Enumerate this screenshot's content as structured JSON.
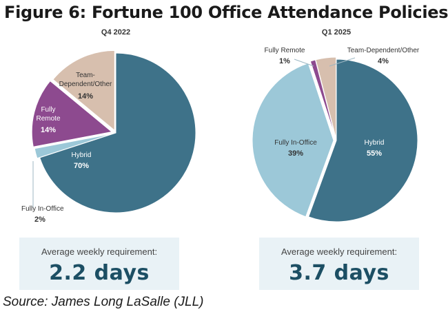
{
  "title": "Figure 6: Fortune 100 Office Attendance Policies",
  "source": "Source: James Long LaSalle (JLL)",
  "colors": {
    "hybrid": "#3e7289",
    "fully_in_office": "#9cc8d8",
    "fully_remote": "#8d4a8f",
    "team_dependent": "#d7bfae"
  },
  "chart_data": [
    {
      "type": "pie",
      "title": "Q4 2022",
      "slices": [
        {
          "label": "Hybrid",
          "value": 70,
          "pct_label": "70%"
        },
        {
          "label": "Fully In-Office",
          "value": 2,
          "pct_label": "2%"
        },
        {
          "label": "Fully Remote",
          "value": 14,
          "pct_label": "14%"
        },
        {
          "label": "Team-Dependent/Other",
          "value": 14,
          "pct_label": "14%"
        }
      ],
      "requirement_label": "Average weekly requirement:",
      "requirement_value": "2.2 days"
    },
    {
      "type": "pie",
      "title": "Q1 2025",
      "slices": [
        {
          "label": "Hybrid",
          "value": 55,
          "pct_label": "55%"
        },
        {
          "label": "Fully In-Office",
          "value": 39,
          "pct_label": "39%"
        },
        {
          "label": "Fully Remote",
          "value": 1,
          "pct_label": "1%"
        },
        {
          "label": "Team-Dependent/Other",
          "value": 4,
          "pct_label": "4%"
        }
      ],
      "requirement_label": "Average weekly requirement:",
      "requirement_value": "3.7 days"
    }
  ]
}
